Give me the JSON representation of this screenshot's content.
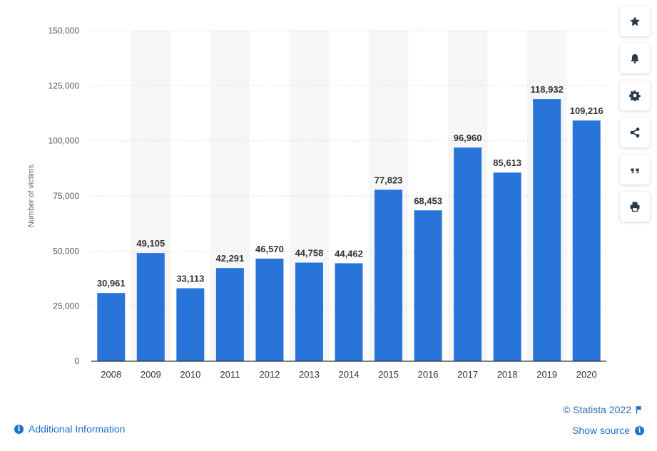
{
  "chart_data": {
    "type": "bar",
    "categories": [
      "2008",
      "2009",
      "2010",
      "2011",
      "2012",
      "2013",
      "2014",
      "2015",
      "2016",
      "2017",
      "2018",
      "2019",
      "2020"
    ],
    "values": [
      30961,
      49105,
      33113,
      42291,
      46570,
      44758,
      44462,
      77823,
      68453,
      96960,
      85613,
      118932,
      109216
    ],
    "data_labels": [
      "30,961",
      "49,105",
      "33,113",
      "42,291",
      "46,570",
      "44,758",
      "44,462",
      "77,823",
      "68,453",
      "96,960",
      "85,613",
      "118,932",
      "109,216"
    ],
    "ylabel": "Number of victims",
    "ylim": [
      0,
      150000
    ],
    "yticks": [
      0,
      25000,
      50000,
      75000,
      100000,
      125000,
      150000
    ],
    "ytick_labels": [
      "0",
      "25,000",
      "50,000",
      "75,000",
      "100,000",
      "125,000",
      "150,000"
    ],
    "bar_color": "#2874d8",
    "band_color": "#f6f6f6",
    "grid": true,
    "legend": "none"
  },
  "toolbar": {
    "buttons": [
      {
        "name": "star-icon",
        "color": "#2b3a4a"
      },
      {
        "name": "bell-icon",
        "color": "#2b3a4a"
      },
      {
        "name": "gear-icon",
        "color": "#2b3a4a"
      },
      {
        "name": "share-icon",
        "color": "#2b3a4a"
      },
      {
        "name": "quote-icon",
        "color": "#2b3a4a"
      },
      {
        "name": "print-icon",
        "color": "#2b3a4a"
      }
    ]
  },
  "footer": {
    "copyright": "© Statista 2022",
    "show_source": "Show source",
    "additional_info": "Additional Information",
    "link_color": "#1f6fd1"
  }
}
